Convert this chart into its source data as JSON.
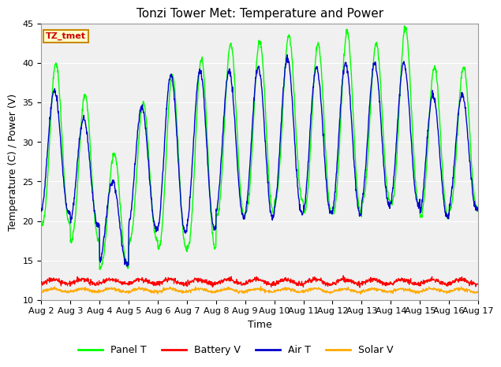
{
  "title": "Tonzi Tower Met: Temperature and Power",
  "xlabel": "Time",
  "ylabel": "Temperature (C) / Power (V)",
  "ylim": [
    10,
    45
  ],
  "tick_labels": [
    "Aug 2",
    "Aug 3",
    "Aug 4",
    "Aug 5",
    "Aug 6",
    "Aug 7",
    "Aug 8",
    "Aug 9",
    "Aug 10",
    "Aug 11",
    "Aug 12",
    "Aug 13",
    "Aug 14",
    "Aug 15",
    "Aug 16",
    "Aug 17"
  ],
  "annotation_text": "TZ_tmet",
  "annotation_bg": "#ffffcc",
  "annotation_border": "#cc8800",
  "annotation_text_color": "#cc0000",
  "panel_t_color": "#00ff00",
  "battery_v_color": "#ff0000",
  "air_t_color": "#0000cc",
  "solar_v_color": "#ffaa00",
  "bg_inner": "#f0f0f0",
  "bg_outer": "#ffffff",
  "title_fontsize": 11,
  "axis_fontsize": 8,
  "legend_fontsize": 9,
  "panel_t_min": [
    19.5,
    17.5,
    14.0,
    17.5,
    16.5,
    16.5,
    20.5,
    21.0,
    22.5,
    21.0,
    21.0,
    22.5,
    22.0,
    20.5,
    21.5
  ],
  "panel_t_max": [
    40.0,
    36.0,
    28.5,
    35.0,
    38.5,
    40.5,
    42.5,
    43.0,
    43.5,
    42.5,
    44.0,
    42.5,
    44.5,
    39.5,
    39.5
  ],
  "air_t_min": [
    21.0,
    19.5,
    14.5,
    19.0,
    18.5,
    19.0,
    20.5,
    20.5,
    21.0,
    21.0,
    21.0,
    22.0,
    22.0,
    20.5,
    21.5
  ],
  "air_t_max": [
    36.5,
    33.0,
    25.0,
    34.5,
    38.5,
    39.0,
    39.0,
    39.5,
    40.5,
    39.5,
    40.0,
    40.0,
    40.0,
    36.0,
    36.0
  ],
  "battery_v_base": 12.0,
  "battery_v_amp": 0.6,
  "solar_v_base": 11.0,
  "solar_v_amp": 0.4,
  "n_points_per_day": 96
}
